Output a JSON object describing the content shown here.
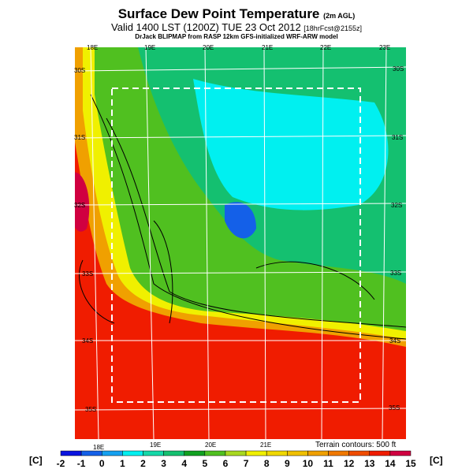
{
  "title": {
    "main": "Surface Dew Point Temperature",
    "main_suffix": "(2m AGL)",
    "valid": "Valid 1400 LST (1200Z) TUE 23 Oct 2012",
    "forecast": "[18hrFcst@2155z]",
    "source": "DrJack BLIPMAP from RASP 12km GFS-initialized WRF-ARW model"
  },
  "axes": {
    "top_lon": [
      "18E",
      "19E",
      "20E",
      "21E",
      "22E",
      "23E"
    ],
    "bottom_lon": [
      "18E",
      "19E",
      "20E",
      "21E"
    ],
    "left_lat": [
      "30S",
      "31S",
      "32S",
      "33S",
      "34S",
      "35S"
    ],
    "right_lat": [
      "30S",
      "31S",
      "32S",
      "33S",
      "34S",
      "35S"
    ]
  },
  "terrain_note": "Terrain contours: 500 ft",
  "colorbar": {
    "unit_left": "[C]",
    "unit_right": "[C]",
    "ticks": [
      "-2",
      "-1",
      "0",
      "1",
      "2",
      "3",
      "4",
      "5",
      "6",
      "7",
      "8",
      "9",
      "10",
      "11",
      "12",
      "13",
      "14",
      "15"
    ],
    "colors": [
      "#0a14e0",
      "#1460e8",
      "#14a0f0",
      "#00f0f0",
      "#14d8a8",
      "#14c070",
      "#10a020",
      "#50c020",
      "#a8d820",
      "#f0f000",
      "#f0d800",
      "#f0c000",
      "#f0a000",
      "#f07800",
      "#f04c00",
      "#f01c00",
      "#d00040"
    ]
  }
}
